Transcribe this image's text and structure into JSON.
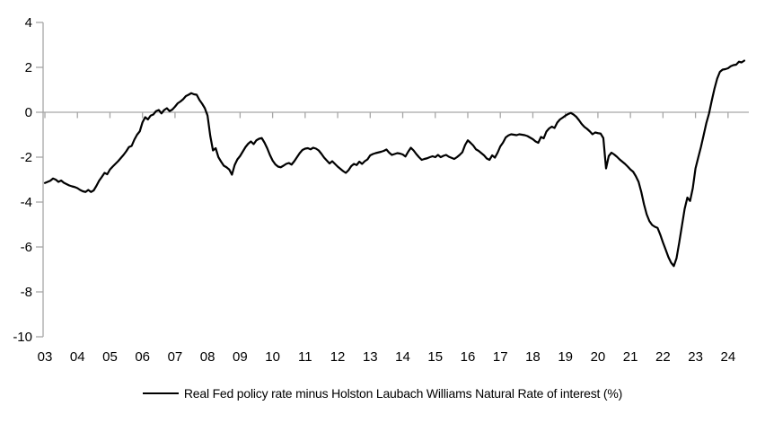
{
  "chart_data": {
    "type": "line",
    "title": "",
    "xlabel": "",
    "ylabel": "",
    "x_start_year": 2003,
    "x_step": "monthly",
    "x_end_label": "2024-07",
    "x_tick_labels": [
      "03",
      "04",
      "05",
      "06",
      "07",
      "08",
      "09",
      "10",
      "11",
      "12",
      "13",
      "14",
      "15",
      "16",
      "17",
      "18",
      "19",
      "20",
      "21",
      "22",
      "23",
      "24"
    ],
    "y_tick_labels": [
      "4",
      "2",
      "0",
      "-2",
      "-4",
      "-6",
      "-8",
      "-10"
    ],
    "y_tick_values": [
      4,
      2,
      0,
      -2,
      -4,
      -6,
      -8,
      -10
    ],
    "ylim": [
      -10,
      4
    ],
    "grid": "zero-line-only",
    "legend_position": "bottom-center",
    "axis_color": "#a6a6a6",
    "line_color": "#000000",
    "background_color": "#ffffff",
    "series": [
      {
        "name": "Real Fed policy rate minus Holston Laubach Williams Natural Rate of interest (%)",
        "color": "#000000",
        "values": [
          -3.15,
          -3.1,
          -3.05,
          -2.95,
          -3.0,
          -3.1,
          -3.04,
          -3.14,
          -3.2,
          -3.26,
          -3.3,
          -3.33,
          -3.38,
          -3.46,
          -3.52,
          -3.55,
          -3.46,
          -3.55,
          -3.48,
          -3.28,
          -3.05,
          -2.88,
          -2.7,
          -2.76,
          -2.55,
          -2.42,
          -2.3,
          -2.18,
          -2.04,
          -1.9,
          -1.74,
          -1.55,
          -1.5,
          -1.22,
          -1.0,
          -0.85,
          -0.45,
          -0.22,
          -0.32,
          -0.15,
          -0.1,
          0.05,
          0.1,
          -0.05,
          0.1,
          0.18,
          0.05,
          0.12,
          0.25,
          0.4,
          0.48,
          0.58,
          0.72,
          0.78,
          0.85,
          0.8,
          0.78,
          0.55,
          0.38,
          0.18,
          -0.15,
          -1.05,
          -1.7,
          -1.6,
          -2.0,
          -2.2,
          -2.38,
          -2.45,
          -2.55,
          -2.78,
          -2.35,
          -2.1,
          -1.95,
          -1.75,
          -1.55,
          -1.4,
          -1.3,
          -1.42,
          -1.25,
          -1.18,
          -1.15,
          -1.35,
          -1.6,
          -1.9,
          -2.15,
          -2.32,
          -2.42,
          -2.45,
          -2.38,
          -2.3,
          -2.26,
          -2.33,
          -2.18,
          -2.0,
          -1.82,
          -1.68,
          -1.62,
          -1.6,
          -1.65,
          -1.58,
          -1.62,
          -1.7,
          -1.85,
          -2.02,
          -2.15,
          -2.28,
          -2.18,
          -2.3,
          -2.42,
          -2.52,
          -2.62,
          -2.7,
          -2.58,
          -2.4,
          -2.3,
          -2.35,
          -2.2,
          -2.3,
          -2.18,
          -2.1,
          -1.92,
          -1.86,
          -1.82,
          -1.79,
          -1.76,
          -1.72,
          -1.66,
          -1.8,
          -1.9,
          -1.86,
          -1.82,
          -1.84,
          -1.88,
          -1.97,
          -1.76,
          -1.58,
          -1.7,
          -1.86,
          -2.0,
          -2.12,
          -2.08,
          -2.05,
          -2.0,
          -1.96,
          -2.0,
          -1.9,
          -2.0,
          -1.94,
          -1.9,
          -1.98,
          -2.03,
          -2.08,
          -2.0,
          -1.9,
          -1.78,
          -1.46,
          -1.25,
          -1.36,
          -1.48,
          -1.65,
          -1.72,
          -1.82,
          -1.92,
          -2.06,
          -2.12,
          -1.92,
          -2.02,
          -1.8,
          -1.52,
          -1.35,
          -1.12,
          -1.03,
          -0.98,
          -1.0,
          -1.02,
          -0.98,
          -1.0,
          -1.02,
          -1.06,
          -1.13,
          -1.2,
          -1.3,
          -1.36,
          -1.1,
          -1.16,
          -0.86,
          -0.72,
          -0.64,
          -0.7,
          -0.46,
          -0.32,
          -0.24,
          -0.15,
          -0.08,
          -0.03,
          -0.1,
          -0.2,
          -0.35,
          -0.52,
          -0.65,
          -0.74,
          -0.85,
          -0.98,
          -0.9,
          -0.93,
          -0.95,
          -1.15,
          -2.5,
          -1.95,
          -1.8,
          -1.88,
          -1.98,
          -2.1,
          -2.2,
          -2.3,
          -2.42,
          -2.55,
          -2.65,
          -2.85,
          -3.1,
          -3.55,
          -4.1,
          -4.55,
          -4.85,
          -5.02,
          -5.1,
          -5.15,
          -5.45,
          -5.8,
          -6.12,
          -6.45,
          -6.7,
          -6.85,
          -6.5,
          -5.8,
          -5.05,
          -4.3,
          -3.8,
          -3.95,
          -3.38,
          -2.5,
          -2.02,
          -1.55,
          -1.02,
          -0.48,
          -0.05,
          0.52,
          1.05,
          1.5,
          1.8,
          1.9,
          1.92,
          1.96,
          2.05,
          2.1,
          2.12,
          2.25,
          2.22,
          2.3
        ]
      }
    ]
  },
  "legend": {
    "label": "Real Fed policy rate minus Holston Laubach Williams Natural Rate of interest (%)"
  }
}
